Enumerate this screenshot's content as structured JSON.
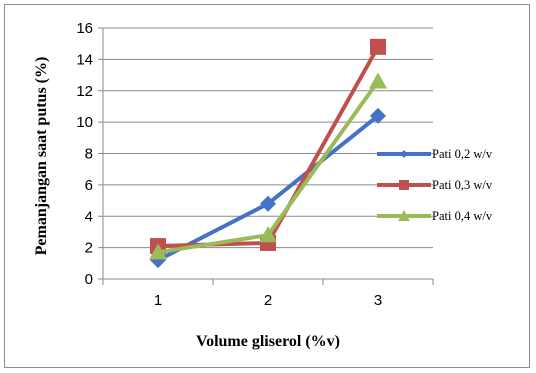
{
  "chart_data": {
    "type": "line",
    "categories": [
      "1",
      "2",
      "3"
    ],
    "xlabel": "Volume gliserol (%v)",
    "ylabel": "Pemanjangan saat putus (%)",
    "ylim": [
      0,
      16
    ],
    "yticks": [
      "0",
      "2",
      "4",
      "6",
      "8",
      "10",
      "12",
      "14",
      "16"
    ],
    "grid": true,
    "legend_position": "right",
    "series": [
      {
        "name": "Pati 0,2 w/v",
        "values": [
          1.2,
          4.8,
          10.4
        ],
        "color": "#4472c4",
        "marker": "diamond"
      },
      {
        "name": "Pati 0,3 w/v",
        "values": [
          2.1,
          2.3,
          14.8
        ],
        "color": "#c0504d",
        "marker": "square"
      },
      {
        "name": "Pati 0,4 w/v",
        "values": [
          1.7,
          2.8,
          12.6
        ],
        "color": "#9bbb59",
        "marker": "triangle"
      }
    ]
  }
}
